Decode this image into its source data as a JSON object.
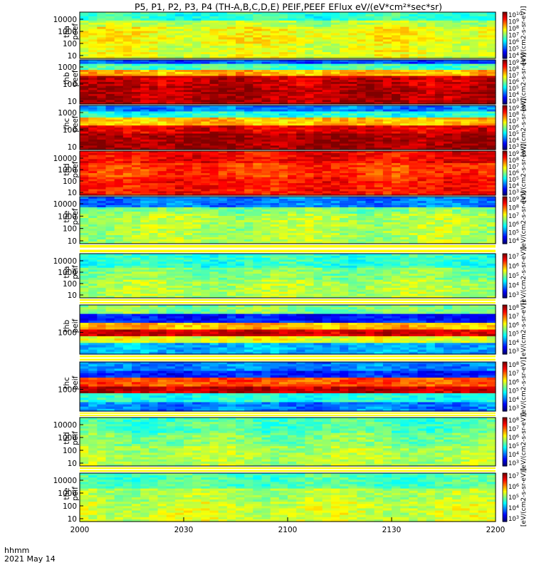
{
  "title": "P5, P1, P2, P3, P4 (TH-A,B,C,D,E) PEIF,PEEF EFlux eV/(eV*cm²*sec*sr)",
  "footer": {
    "line1": "hhmm",
    "line2": "2021 May 14"
  },
  "chart_data": {
    "type": "heatmap",
    "x_ticks": [
      "2000",
      "2030",
      "2100",
      "2130",
      "2200"
    ],
    "panels": [
      {
        "label1": "tha",
        "label2": "peef",
        "yticks": [
          "10",
          "100",
          "1000",
          "10000"
        ],
        "cb_ticks": [
          "10^4",
          "10^5",
          "10^6",
          "10^7",
          "10^8",
          "10^9",
          "10^10"
        ],
        "cb_unit": "[eV/(cm2-s-sr-eV)]"
      },
      {
        "label1": "thb",
        "label2": "peef",
        "yticks": [
          "10",
          "100",
          "1000"
        ],
        "cb_ticks": [
          "10^3",
          "10^4",
          "10^5",
          "10^6",
          "10^7",
          "10^8",
          "10^9"
        ],
        "cb_unit": "[eV/(cm2-s-sr-eV)]"
      },
      {
        "label1": "thc",
        "label2": "peef",
        "yticks": [
          "10",
          "100",
          "1000"
        ],
        "cb_ticks": [
          "10^3",
          "10^4",
          "10^5",
          "10^6",
          "10^7",
          "10^8",
          "10^9"
        ],
        "cb_unit": "[eV/(cm2-s-sr-eV)]"
      },
      {
        "label1": "thd",
        "label2": "peef",
        "yticks": [
          "10",
          "100",
          "1000",
          "10000"
        ],
        "cb_ticks": [
          "10^3",
          "10^4",
          "10^5",
          "10^6",
          "10^7",
          "10^8",
          "10^9"
        ],
        "cb_unit": "[eV/(cm2-s-sr-eV)]"
      },
      {
        "label1": "the",
        "label2": "peef",
        "yticks": [
          "10",
          "100",
          "1000",
          "10000"
        ],
        "cb_ticks": [
          "10^4",
          "10^5",
          "10^6",
          "10^7",
          "10^8",
          "10^9"
        ],
        "cb_unit": "[eV/(cm2-s-sr-eV)]"
      },
      {
        "label1": "tha",
        "label2": "peif",
        "yticks": [
          "10",
          "100",
          "1000",
          "10000"
        ],
        "cb_ticks": [
          "10^3",
          "10^4",
          "10^5",
          "10^6",
          "10^7"
        ],
        "cb_unit": "[eV/(cm2-s-sr-eV)]"
      },
      {
        "label1": "thb",
        "label2": "peif",
        "yticks": [
          "1000"
        ],
        "cb_ticks": [
          "10^3",
          "10^4",
          "10^5",
          "10^6",
          "10^7",
          "10^8"
        ],
        "cb_unit": "[eV/(cm2-s-sr-eV)]"
      },
      {
        "label1": "thc",
        "label2": "peif",
        "yticks": [
          "1000"
        ],
        "cb_ticks": [
          "10^3",
          "10^4",
          "10^5",
          "10^6",
          "10^7",
          "10^8"
        ],
        "cb_unit": "[eV/(cm2-s-sr-eV)]"
      },
      {
        "label1": "thd",
        "label2": "peif",
        "yticks": [
          "10",
          "100",
          "1000",
          "10000"
        ],
        "cb_ticks": [
          "10^3",
          "10^4",
          "10^5",
          "10^6",
          "10^7",
          "10^8"
        ],
        "cb_unit": "[eV/(cm2-s-sr-eV)]"
      },
      {
        "label1": "the",
        "label2": "peif",
        "yticks": [
          "10",
          "100",
          "1000",
          "10000"
        ],
        "cb_ticks": [
          "10^3",
          "10^4",
          "10^5",
          "10^6",
          "10^7"
        ],
        "cb_unit": "[eV/(cm2-s-sr-eV)]"
      }
    ]
  }
}
